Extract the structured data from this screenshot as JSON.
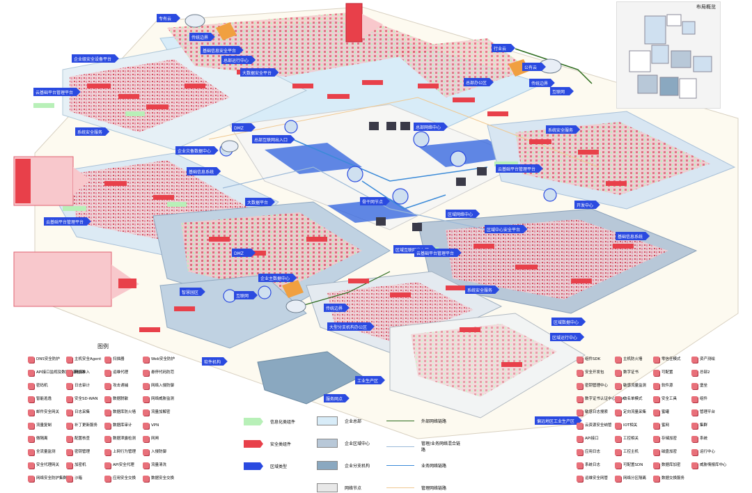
{
  "overview": {
    "title": "布局概览"
  },
  "legend": {
    "title": "图例",
    "icons": [
      [
        "DNS安全防护",
        "主机安全Agent",
        "扫描器",
        "Web安全防护"
      ],
      [
        "API接口监视及数据泄漏检测",
        "网络准入",
        "运维代理",
        "悬停代码防范"
      ],
      [
        "密码机",
        "日志审计",
        "攻击诱捕",
        "网络入侵防御"
      ],
      [
        "智能逃逸",
        "安全SD-WAN",
        "数据脱敏",
        "网络威胁监测"
      ],
      [
        "邮件安全网关",
        "日志采集",
        "数据库防火墙",
        "流量加解密"
      ],
      [
        "流量复制",
        "补丁更新服务",
        "数据库审计",
        "VPN"
      ],
      [
        "微隔离",
        "配置核查",
        "数据泄露检测",
        "网闸"
      ],
      [
        "全流量监测",
        "密钥管理",
        "上网行为管理",
        "入侵防御"
      ],
      [
        "安全代理网关",
        "加密机",
        "API安全代理",
        "流量清洗"
      ],
      [
        "网络安全防护集群",
        "沙箱",
        "应用安全交换",
        "数据安全交换"
      ]
    ],
    "icons_right": [
      [
        "组件SDK",
        "主机防火墙",
        "零信任模式",
        "资产测绘"
      ],
      [
        "安全开发包",
        "数字证书",
        "可配置",
        "总部2"
      ],
      [
        "密钥管理中心",
        "敏感流量监测",
        "软件源",
        "堡垒"
      ],
      [
        "数字证书认证中心（CA）",
        "白名单模式",
        "安全工具",
        "组件"
      ],
      [
        "敏感日志搜索",
        "定向流量采集",
        "蜜罐",
        "管理平台"
      ],
      [
        "云资源安全纳管",
        "IOT相关",
        "蜜网",
        "集群"
      ],
      [
        "API接口",
        "工控相关",
        "存储加密",
        "系统"
      ],
      [
        "应用日志",
        "工控主机",
        "磁盘加密",
        "运行中心"
      ],
      [
        "系统日志",
        "可配置SDN",
        "数据库加密",
        "威胁情报库中心"
      ],
      [
        "运维安全网管",
        "网络分区隔离",
        "数据交换服务",
        ""
      ]
    ],
    "swatches": [
      {
        "label": "信息化类组件",
        "color": "#b8f0b8"
      },
      {
        "label": "安全类组件",
        "color": "#e8404a"
      },
      {
        "label": "区域类型",
        "color": "#2a4ae0"
      }
    ],
    "zones": [
      {
        "label": "企业总部",
        "color": "#d8ecf8"
      },
      {
        "label": "企业区域中心",
        "color": "#b8c8d8"
      },
      {
        "label": "企业分支机构",
        "color": "#8aa8c0"
      },
      {
        "label": "网络节点",
        "color": "#e8e8e8"
      }
    ],
    "links": [
      {
        "label": "外部网络链路",
        "color": "#2a6a1a"
      },
      {
        "label": "管理/业务网络混合链路",
        "color": "#9ab8d8"
      },
      {
        "label": "业务网络链路",
        "color": "#3a8ad8"
      },
      {
        "label": "管理网络链路",
        "color": "#f0c890"
      }
    ]
  },
  "region_labels": [
    "专有云",
    "传统边界",
    "基础信息安全平台",
    "总部运行中心",
    "企业级安全设备平台",
    "大数据安全平台",
    "云基础平台管理平台",
    "系统安全服务",
    "DMZ",
    "总部互联网出入口",
    "企业灾备数据中心",
    "基础信息系统",
    "大数据平台",
    "云基础平台管理平台",
    "总部网络中心",
    "总部办公区",
    "行业云",
    "公有云",
    "传统边界",
    "互联网",
    "骨干网节点",
    "区域网络中心",
    "云基础平台管理平台",
    "区域中心安全平台",
    "开发中心",
    "系统安全服务",
    "区域互联网出入口",
    "云基础平台管理平台",
    "基础信息系统",
    "企业主数据中心",
    "传统边界",
    "DMZ",
    "互联网",
    "智慧园区",
    "软件机构",
    "系统安全服务",
    "大型分支机构办公区",
    "工业生产区",
    "服务网点",
    "区域数据中心",
    "区域运行中心",
    "偏远地区工业生产区"
  ]
}
